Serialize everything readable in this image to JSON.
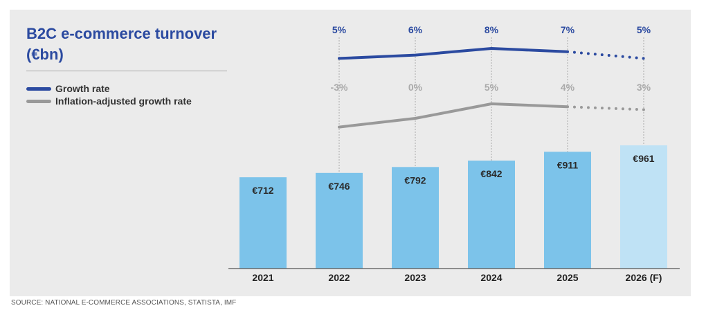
{
  "chart_data": {
    "type": "bar",
    "title": "B2C e-commerce turnover (€bn)",
    "categories": [
      "2021",
      "2022",
      "2023",
      "2024",
      "2025",
      "2026 (F)"
    ],
    "values": [
      712,
      746,
      792,
      842,
      911,
      961
    ],
    "value_labels": [
      "€712",
      "€746",
      "€792",
      "€842",
      "€911",
      "€961"
    ],
    "forecast_index": 5,
    "series": [
      {
        "name": "Growth rate",
        "x": [
          "2022",
          "2023",
          "2024",
          "2025",
          "2026 (F)"
        ],
        "values": [
          5,
          6,
          8,
          7,
          5
        ],
        "labels": [
          "5%",
          "6%",
          "8%",
          "7%",
          "5%"
        ],
        "color": "#2b4aa0",
        "forecast_dotted": true
      },
      {
        "name": "Inflation-adjusted growth rate",
        "x": [
          "2022",
          "2023",
          "2024",
          "2025",
          "2026 (F)"
        ],
        "values": [
          -3,
          0,
          5,
          4,
          3
        ],
        "labels": [
          "-3%",
          "0%",
          "5%",
          "4%",
          "3%"
        ],
        "color": "#999999",
        "forecast_dotted": true
      }
    ],
    "legend_position": "top-left",
    "grid": false,
    "colors": {
      "bar": "#7cc3ea",
      "bar_forecast": "#bfe2f5",
      "axis": "#555555",
      "guide": "#aaaaaa"
    }
  },
  "legend": {
    "growth_rate": "Growth rate",
    "inflation_adjusted": "Inflation-adjusted growth rate"
  },
  "source": "SOURCE: NATIONAL E-COMMERCE ASSOCIATIONS, STATISTA, IMF"
}
